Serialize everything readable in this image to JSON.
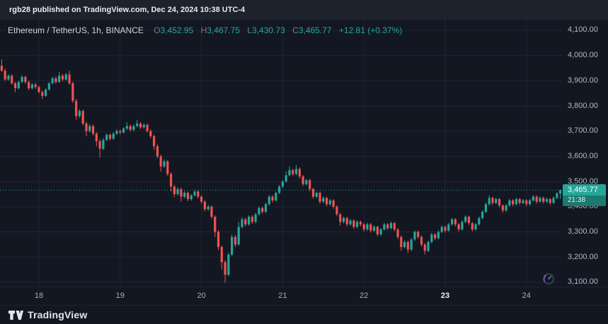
{
  "attribution": {
    "text": "rgb28 published on TradingView.com, Dec 24, 2024 10:38 UTC-4"
  },
  "header": {
    "symbol": "Ethereum / TetherUS, 1h, BINANCE",
    "o_label": "O",
    "o": "3,452.95",
    "h_label": "H",
    "h": "3,467.75",
    "l_label": "L",
    "l": "3,430.73",
    "c_label": "C",
    "c": "3,465.77",
    "change": "+12.81 (+0.37%)"
  },
  "price_scale": {
    "current_price": "3,465.77",
    "countdown": "21:38"
  },
  "footer": {
    "logo_text": "TradingView"
  },
  "icons": {
    "gauge": "gauge-icon",
    "logo_mark": "tradingview-logo-mark"
  },
  "colors": {
    "up": "#26a69a",
    "down": "#ef5350",
    "bg": "#131722",
    "grid": "#1f2433",
    "countdown_bg": "#1c7a70",
    "axis_text": "#b4b8c1"
  },
  "chart_data": {
    "type": "candlestick",
    "pair": "Ethereum / TetherUS",
    "exchange": "BINANCE",
    "interval": "1h",
    "last_price": 3465.77,
    "price_min": 3083,
    "price_max": 4142,
    "grid": true,
    "y_ticks": [
      {
        "price": 4100,
        "label": "4,100.00"
      },
      {
        "price": 4000,
        "label": "4,000.00"
      },
      {
        "price": 3900,
        "label": "3,900.00"
      },
      {
        "price": 3800,
        "label": "3,800.00"
      },
      {
        "price": 3700,
        "label": "3,700.00"
      },
      {
        "price": 3600,
        "label": "3,600.00"
      },
      {
        "price": 3500,
        "label": "3,500.00"
      },
      {
        "price": 3400,
        "label": "3,400.00"
      },
      {
        "price": 3300,
        "label": "3,300.00"
      },
      {
        "price": 3200,
        "label": "3,200.00"
      },
      {
        "price": 3100,
        "label": "3,100.00"
      }
    ],
    "x_labels": [
      {
        "i": 11,
        "label": "18",
        "bold": false
      },
      {
        "i": 35,
        "label": "19",
        "bold": false
      },
      {
        "i": 59,
        "label": "20",
        "bold": false
      },
      {
        "i": 83,
        "label": "21",
        "bold": false
      },
      {
        "i": 107,
        "label": "22",
        "bold": false
      },
      {
        "i": 131,
        "label": "23",
        "bold": true
      },
      {
        "i": 155,
        "label": "24",
        "bold": false
      }
    ],
    "candles": [
      [
        3960,
        3985,
        3935,
        3940
      ],
      [
        3940,
        3948,
        3900,
        3905
      ],
      [
        3905,
        3925,
        3900,
        3920
      ],
      [
        3920,
        3926,
        3884,
        3890
      ],
      [
        3890,
        3896,
        3855,
        3870
      ],
      [
        3870,
        3900,
        3866,
        3895
      ],
      [
        3895,
        3922,
        3890,
        3915
      ],
      [
        3915,
        3921,
        3888,
        3895
      ],
      [
        3895,
        3900,
        3862,
        3870
      ],
      [
        3870,
        3890,
        3865,
        3885
      ],
      [
        3885,
        3892,
        3868,
        3875
      ],
      [
        3875,
        3881,
        3850,
        3855
      ],
      [
        3855,
        3862,
        3828,
        3840
      ],
      [
        3840,
        3870,
        3836,
        3865
      ],
      [
        3865,
        3895,
        3860,
        3890
      ],
      [
        3890,
        3916,
        3885,
        3910
      ],
      [
        3910,
        3917,
        3888,
        3895
      ],
      [
        3895,
        3935,
        3892,
        3920
      ],
      [
        3920,
        3928,
        3898,
        3905
      ],
      [
        3905,
        3930,
        3900,
        3925
      ],
      [
        3925,
        3940,
        3884,
        3890
      ],
      [
        3890,
        3896,
        3812,
        3820
      ],
      [
        3820,
        3828,
        3745,
        3760
      ],
      [
        3760,
        3788,
        3752,
        3780
      ],
      [
        3780,
        3786,
        3722,
        3730
      ],
      [
        3730,
        3738,
        3680,
        3700
      ],
      [
        3700,
        3728,
        3694,
        3720
      ],
      [
        3720,
        3726,
        3682,
        3690
      ],
      [
        3690,
        3696,
        3640,
        3660
      ],
      [
        3660,
        3668,
        3595,
        3630
      ],
      [
        3630,
        3672,
        3624,
        3665
      ],
      [
        3665,
        3692,
        3660,
        3685
      ],
      [
        3685,
        3691,
        3662,
        3670
      ],
      [
        3670,
        3696,
        3665,
        3690
      ],
      [
        3690,
        3708,
        3684,
        3700
      ],
      [
        3700,
        3706,
        3686,
        3695
      ],
      [
        3695,
        3716,
        3690,
        3710
      ],
      [
        3710,
        3735,
        3705,
        3720
      ],
      [
        3720,
        3726,
        3698,
        3705
      ],
      [
        3705,
        3726,
        3700,
        3720
      ],
      [
        3720,
        3745,
        3715,
        3730
      ],
      [
        3730,
        3736,
        3708,
        3715
      ],
      [
        3715,
        3731,
        3710,
        3725
      ],
      [
        3725,
        3730,
        3694,
        3700
      ],
      [
        3700,
        3707,
        3672,
        3680
      ],
      [
        3680,
        3686,
        3625,
        3640
      ],
      [
        3640,
        3648,
        3592,
        3600
      ],
      [
        3600,
        3607,
        3540,
        3560
      ],
      [
        3560,
        3588,
        3554,
        3580
      ],
      [
        3580,
        3585,
        3522,
        3530
      ],
      [
        3530,
        3537,
        3460,
        3480
      ],
      [
        3480,
        3487,
        3438,
        3450
      ],
      [
        3450,
        3478,
        3444,
        3470
      ],
      [
        3470,
        3476,
        3420,
        3440
      ],
      [
        3440,
        3462,
        3434,
        3455
      ],
      [
        3455,
        3460,
        3422,
        3430
      ],
      [
        3430,
        3450,
        3424,
        3445
      ],
      [
        3445,
        3466,
        3440,
        3460
      ],
      [
        3460,
        3466,
        3432,
        3440
      ],
      [
        3440,
        3446,
        3412,
        3420
      ],
      [
        3420,
        3426,
        3382,
        3390
      ],
      [
        3390,
        3408,
        3384,
        3400
      ],
      [
        3400,
        3406,
        3352,
        3360
      ],
      [
        3360,
        3366,
        3280,
        3300
      ],
      [
        3300,
        3308,
        3228,
        3240
      ],
      [
        3240,
        3246,
        3150,
        3180
      ],
      [
        3180,
        3188,
        3098,
        3130
      ],
      [
        3130,
        3218,
        3124,
        3210
      ],
      [
        3210,
        3290,
        3204,
        3280
      ],
      [
        3280,
        3288,
        3240,
        3250
      ],
      [
        3250,
        3340,
        3246,
        3320
      ],
      [
        3320,
        3358,
        3314,
        3350
      ],
      [
        3350,
        3356,
        3322,
        3330
      ],
      [
        3330,
        3366,
        3324,
        3360
      ],
      [
        3360,
        3366,
        3332,
        3340
      ],
      [
        3340,
        3376,
        3334,
        3370
      ],
      [
        3370,
        3400,
        3364,
        3395
      ],
      [
        3395,
        3401,
        3372,
        3380
      ],
      [
        3380,
        3416,
        3375,
        3410
      ],
      [
        3410,
        3446,
        3405,
        3440
      ],
      [
        3440,
        3446,
        3416,
        3425
      ],
      [
        3425,
        3460,
        3420,
        3455
      ],
      [
        3455,
        3486,
        3450,
        3480
      ],
      [
        3480,
        3506,
        3474,
        3500
      ],
      [
        3500,
        3540,
        3495,
        3525
      ],
      [
        3525,
        3560,
        3520,
        3545
      ],
      [
        3545,
        3551,
        3522,
        3530
      ],
      [
        3530,
        3565,
        3525,
        3550
      ],
      [
        3550,
        3556,
        3512,
        3520
      ],
      [
        3520,
        3526,
        3482,
        3490
      ],
      [
        3490,
        3511,
        3484,
        3505
      ],
      [
        3505,
        3511,
        3462,
        3470
      ],
      [
        3470,
        3476,
        3432,
        3440
      ],
      [
        3440,
        3461,
        3434,
        3455
      ],
      [
        3455,
        3460,
        3412,
        3420
      ],
      [
        3420,
        3441,
        3414,
        3435
      ],
      [
        3435,
        3440,
        3402,
        3410
      ],
      [
        3410,
        3431,
        3404,
        3425
      ],
      [
        3425,
        3430,
        3392,
        3400
      ],
      [
        3400,
        3406,
        3362,
        3370
      ],
      [
        3370,
        3376,
        3325,
        3340
      ],
      [
        3340,
        3361,
        3334,
        3355
      ],
      [
        3355,
        3360,
        3322,
        3330
      ],
      [
        3330,
        3351,
        3324,
        3345
      ],
      [
        3345,
        3350,
        3312,
        3320
      ],
      [
        3320,
        3346,
        3314,
        3340
      ],
      [
        3340,
        3345,
        3322,
        3330
      ],
      [
        3330,
        3336,
        3302,
        3310
      ],
      [
        3310,
        3336,
        3304,
        3330
      ],
      [
        3330,
        3335,
        3297,
        3305
      ],
      [
        3305,
        3326,
        3300,
        3320
      ],
      [
        3320,
        3325,
        3282,
        3290
      ],
      [
        3290,
        3316,
        3284,
        3310
      ],
      [
        3310,
        3336,
        3305,
        3330
      ],
      [
        3330,
        3335,
        3307,
        3315
      ],
      [
        3315,
        3341,
        3310,
        3335
      ],
      [
        3335,
        3340,
        3302,
        3310
      ],
      [
        3310,
        3316,
        3272,
        3280
      ],
      [
        3280,
        3286,
        3225,
        3240
      ],
      [
        3240,
        3266,
        3234,
        3260
      ],
      [
        3260,
        3265,
        3215,
        3230
      ],
      [
        3230,
        3276,
        3224,
        3270
      ],
      [
        3270,
        3306,
        3264,
        3300
      ],
      [
        3300,
        3306,
        3272,
        3280
      ],
      [
        3280,
        3286,
        3242,
        3250
      ],
      [
        3250,
        3256,
        3210,
        3225
      ],
      [
        3225,
        3266,
        3220,
        3260
      ],
      [
        3260,
        3296,
        3255,
        3290
      ],
      [
        3290,
        3295,
        3267,
        3275
      ],
      [
        3275,
        3306,
        3270,
        3300
      ],
      [
        3300,
        3326,
        3295,
        3320
      ],
      [
        3320,
        3326,
        3297,
        3305
      ],
      [
        3305,
        3336,
        3300,
        3330
      ],
      [
        3330,
        3356,
        3325,
        3350
      ],
      [
        3350,
        3355,
        3322,
        3330
      ],
      [
        3330,
        3336,
        3302,
        3310
      ],
      [
        3310,
        3346,
        3305,
        3340
      ],
      [
        3340,
        3366,
        3335,
        3360
      ],
      [
        3360,
        3365,
        3327,
        3335
      ],
      [
        3335,
        3340,
        3302,
        3310
      ],
      [
        3310,
        3336,
        3305,
        3330
      ],
      [
        3330,
        3361,
        3325,
        3355
      ],
      [
        3355,
        3386,
        3350,
        3380
      ],
      [
        3380,
        3416,
        3375,
        3410
      ],
      [
        3410,
        3445,
        3405,
        3435
      ],
      [
        3435,
        3440,
        3407,
        3415
      ],
      [
        3415,
        3436,
        3410,
        3430
      ],
      [
        3430,
        3435,
        3397,
        3405
      ],
      [
        3405,
        3410,
        3377,
        3385
      ],
      [
        3385,
        3411,
        3380,
        3405
      ],
      [
        3405,
        3431,
        3400,
        3425
      ],
      [
        3425,
        3430,
        3402,
        3410
      ],
      [
        3410,
        3436,
        3405,
        3430
      ],
      [
        3430,
        3435,
        3407,
        3415
      ],
      [
        3415,
        3431,
        3410,
        3425
      ],
      [
        3425,
        3430,
        3402,
        3410
      ],
      [
        3410,
        3431,
        3405,
        3425
      ],
      [
        3425,
        3446,
        3420,
        3440
      ],
      [
        3440,
        3445,
        3412,
        3420
      ],
      [
        3420,
        3441,
        3415,
        3435
      ],
      [
        3435,
        3440,
        3412,
        3420
      ],
      [
        3420,
        3436,
        3415,
        3430
      ],
      [
        3430,
        3435,
        3407,
        3415
      ],
      [
        3415,
        3441,
        3410,
        3435
      ],
      [
        3435,
        3458,
        3430,
        3452.95
      ],
      [
        3452.95,
        3467.75,
        3430.73,
        3465.77
      ]
    ]
  }
}
